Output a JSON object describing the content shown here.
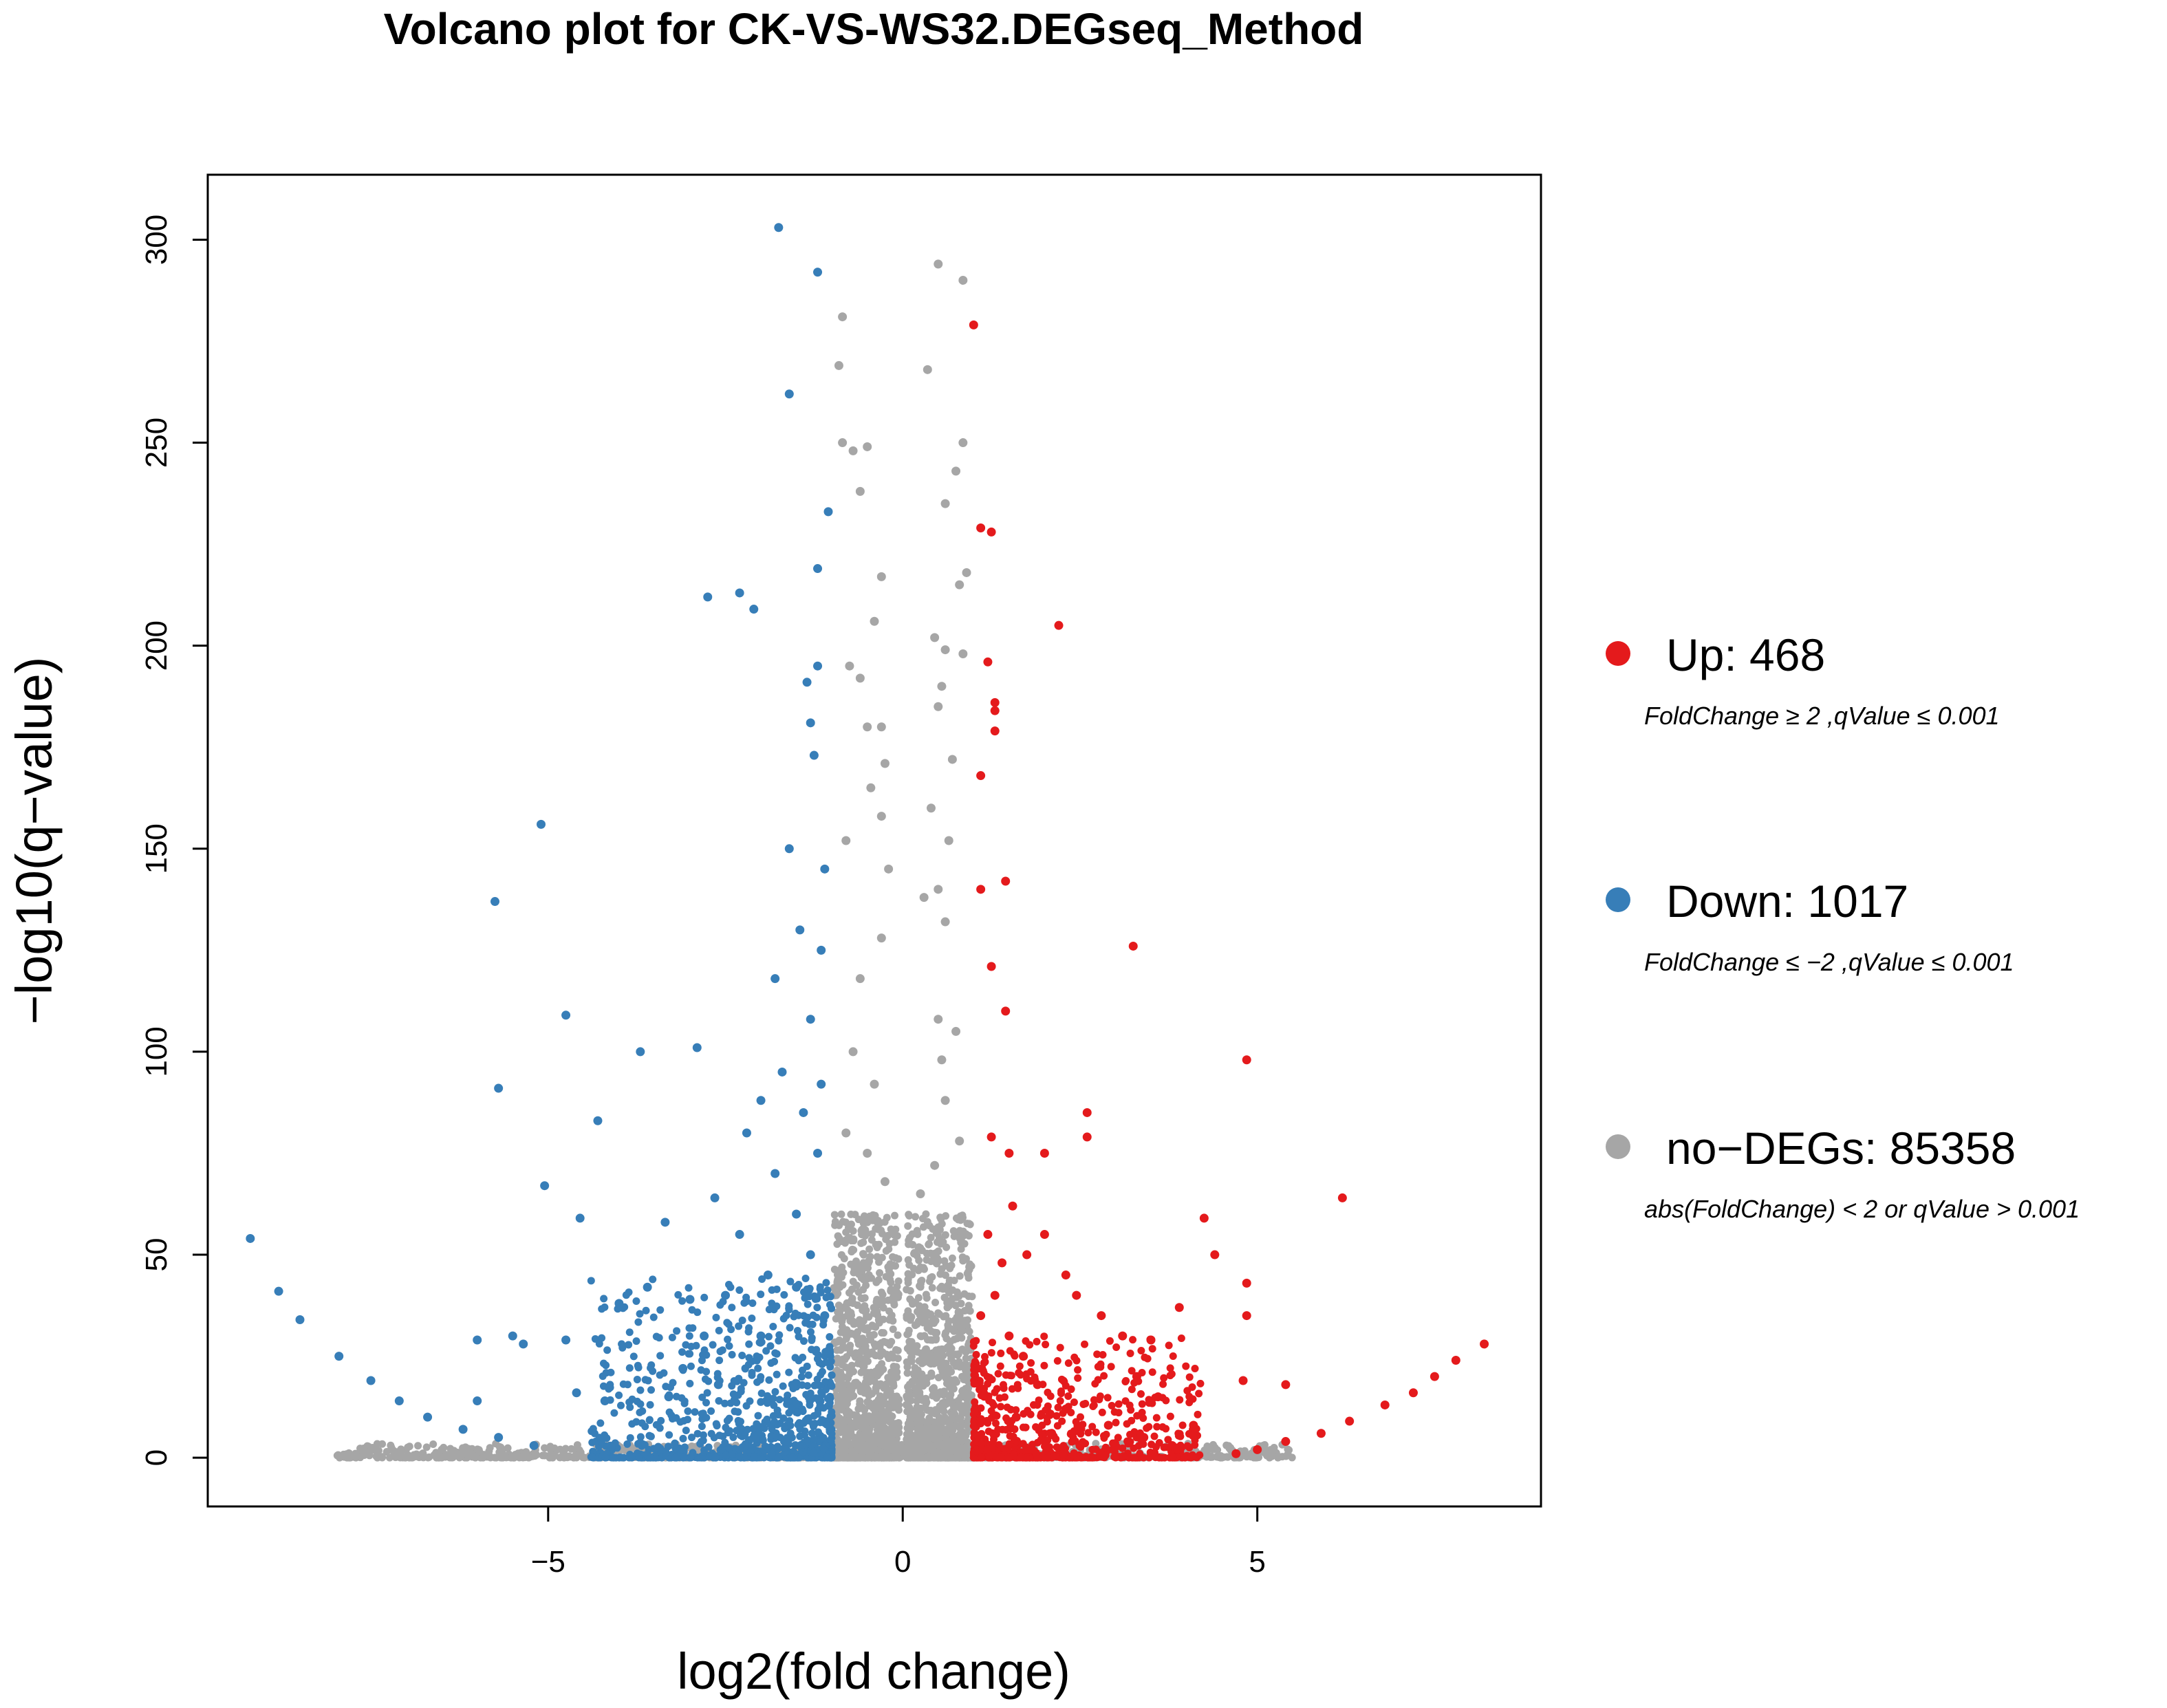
{
  "chart_data": {
    "type": "scatter",
    "title": "Volcano plot for CK-VS-WS32.DEGseq_Method",
    "xlabel": "log2(fold change)",
    "ylabel": "−log10(q−value)",
    "xlim": [
      -9.8,
      9.0
    ],
    "ylim": [
      -12,
      316
    ],
    "x_ticks": [
      -5,
      0,
      5
    ],
    "x_tick_labels": [
      "−5",
      "0",
      "5"
    ],
    "y_ticks": [
      0,
      50,
      100,
      150,
      200,
      250,
      300
    ],
    "y_tick_labels": [
      "0",
      "50",
      "100",
      "150",
      "200",
      "250",
      "300"
    ],
    "grid": false,
    "legend_position": "right",
    "series": [
      {
        "name": "Up",
        "label": "Up: 468",
        "count": 468,
        "criteria": "FoldChange ≥ 2 ,qValue ≤ 0.001",
        "color": "#e41a1c",
        "points": [
          [
            1.0,
            279
          ],
          [
            1.1,
            229
          ],
          [
            1.25,
            228
          ],
          [
            1.2,
            196
          ],
          [
            1.3,
            186
          ],
          [
            1.3,
            184
          ],
          [
            1.3,
            179
          ],
          [
            1.1,
            168
          ],
          [
            2.2,
            205
          ],
          [
            1.45,
            142
          ],
          [
            1.1,
            140
          ],
          [
            1.25,
            121
          ],
          [
            1.45,
            110
          ],
          [
            3.25,
            126
          ],
          [
            4.85,
            98
          ],
          [
            2.6,
            85
          ],
          [
            2.6,
            79
          ],
          [
            1.25,
            79
          ],
          [
            2.0,
            75
          ],
          [
            1.5,
            75
          ],
          [
            6.2,
            64
          ],
          [
            4.25,
            59
          ],
          [
            4.4,
            50
          ],
          [
            4.85,
            43
          ],
          [
            3.9,
            37
          ],
          [
            4.85,
            35
          ],
          [
            8.2,
            28
          ],
          [
            7.8,
            24
          ],
          [
            7.5,
            20
          ],
          [
            7.2,
            16
          ],
          [
            6.8,
            13
          ],
          [
            6.3,
            9
          ],
          [
            5.9,
            6
          ],
          [
            5.4,
            4
          ],
          [
            5.0,
            2
          ],
          [
            4.7,
            1
          ],
          [
            5.4,
            18
          ],
          [
            4.8,
            19
          ],
          [
            2.0,
            55
          ],
          [
            1.75,
            50
          ],
          [
            1.55,
            62
          ],
          [
            2.3,
            45
          ],
          [
            2.45,
            40
          ],
          [
            3.1,
            30
          ],
          [
            2.8,
            35
          ],
          [
            3.5,
            29
          ],
          [
            3.3,
            20
          ],
          [
            3.6,
            15
          ],
          [
            4.1,
            8
          ],
          [
            3.4,
            5
          ],
          [
            2.9,
            8
          ],
          [
            2.3,
            12
          ],
          [
            1.9,
            18
          ],
          [
            1.7,
            25
          ],
          [
            1.5,
            30
          ],
          [
            1.3,
            40
          ],
          [
            1.4,
            48
          ],
          [
            1.2,
            55
          ],
          [
            1.1,
            35
          ],
          [
            1.05,
            22
          ],
          [
            1.6,
            10
          ],
          [
            2.1,
            6
          ],
          [
            2.5,
            3
          ],
          [
            1.8,
            2
          ],
          [
            1.2,
            2
          ],
          [
            3.8,
            3
          ]
        ]
      },
      {
        "name": "Down",
        "label": "Down: 1017",
        "count": 1017,
        "criteria": "FoldChange ≤ −2 ,qValue ≤ 0.001",
        "color": "#377eb8",
        "points": [
          [
            -1.75,
            303
          ],
          [
            -1.2,
            292
          ],
          [
            -1.6,
            262
          ],
          [
            -1.05,
            233
          ],
          [
            -1.2,
            219
          ],
          [
            -2.75,
            212
          ],
          [
            -2.3,
            213
          ],
          [
            -2.1,
            209
          ],
          [
            -1.2,
            195
          ],
          [
            -1.35,
            191
          ],
          [
            -1.3,
            181
          ],
          [
            -1.25,
            173
          ],
          [
            -5.1,
            156
          ],
          [
            -5.75,
            137
          ],
          [
            -4.75,
            109
          ],
          [
            -3.7,
            100
          ],
          [
            -2.9,
            101
          ],
          [
            -5.7,
            91
          ],
          [
            -4.3,
            83
          ],
          [
            -2.2,
            80
          ],
          [
            -5.05,
            67
          ],
          [
            -2.65,
            64
          ],
          [
            -4.55,
            59
          ],
          [
            -3.35,
            58
          ],
          [
            -9.2,
            54
          ],
          [
            -8.8,
            41
          ],
          [
            -8.5,
            34
          ],
          [
            -7.95,
            25
          ],
          [
            -6.0,
            29
          ],
          [
            -5.5,
            30
          ],
          [
            -5.35,
            28
          ],
          [
            -4.75,
            29
          ],
          [
            -4.0,
            38
          ],
          [
            -3.6,
            42
          ],
          [
            -3.0,
            39
          ],
          [
            -7.5,
            19
          ],
          [
            -7.1,
            14
          ],
          [
            -6.7,
            10
          ],
          [
            -6.2,
            7
          ],
          [
            -5.7,
            5
          ],
          [
            -5.2,
            3
          ],
          [
            -4.6,
            16
          ],
          [
            -4.2,
            14
          ],
          [
            -6.0,
            14
          ],
          [
            -1.6,
            150
          ],
          [
            -1.1,
            145
          ],
          [
            -1.45,
            130
          ],
          [
            -1.8,
            118
          ],
          [
            -1.15,
            125
          ],
          [
            -1.3,
            108
          ],
          [
            -1.7,
            95
          ],
          [
            -1.15,
            92
          ],
          [
            -2.0,
            88
          ],
          [
            -1.4,
            85
          ],
          [
            -1.2,
            75
          ],
          [
            -1.8,
            70
          ],
          [
            -1.5,
            60
          ],
          [
            -2.3,
            55
          ],
          [
            -1.9,
            45
          ],
          [
            -2.5,
            40
          ],
          [
            -2.8,
            30
          ],
          [
            -3.1,
            22
          ],
          [
            -3.3,
            15
          ],
          [
            -2.6,
            18
          ],
          [
            -2.0,
            30
          ],
          [
            -1.3,
            50
          ],
          [
            -1.5,
            42
          ],
          [
            -1.1,
            35
          ]
        ]
      },
      {
        "name": "no-DEGs",
        "label": "no−DEGs: 85358",
        "count": 85358,
        "criteria": "abs(FoldChange) < 2  or qValue > 0.001",
        "color": "#a6a6a6",
        "points": [
          [
            0.5,
            294
          ],
          [
            0.85,
            290
          ],
          [
            -0.85,
            281
          ],
          [
            -0.9,
            269
          ],
          [
            0.35,
            268
          ],
          [
            -0.85,
            250
          ],
          [
            0.85,
            250
          ],
          [
            -0.5,
            249
          ],
          [
            -0.7,
            248
          ],
          [
            0.75,
            243
          ],
          [
            -0.6,
            238
          ],
          [
            0.6,
            235
          ],
          [
            0.9,
            218
          ],
          [
            0.8,
            215
          ],
          [
            -0.3,
            217
          ],
          [
            -0.4,
            206
          ],
          [
            0.45,
            202
          ],
          [
            0.6,
            199
          ],
          [
            0.85,
            198
          ],
          [
            -0.75,
            195
          ],
          [
            -0.6,
            192
          ],
          [
            0.55,
            190
          ],
          [
            0.5,
            185
          ],
          [
            -0.5,
            180
          ],
          [
            -0.3,
            180
          ],
          [
            -0.25,
            171
          ],
          [
            0.7,
            172
          ],
          [
            -0.45,
            165
          ],
          [
            0.4,
            160
          ],
          [
            -0.3,
            158
          ],
          [
            -0.8,
            152
          ],
          [
            -0.2,
            145
          ],
          [
            0.65,
            152
          ],
          [
            0.5,
            140
          ],
          [
            0.3,
            138
          ],
          [
            -0.3,
            128
          ],
          [
            0.6,
            132
          ],
          [
            -0.6,
            118
          ],
          [
            0.5,
            108
          ],
          [
            0.75,
            105
          ],
          [
            -0.7,
            100
          ],
          [
            0.55,
            98
          ],
          [
            -0.4,
            92
          ],
          [
            0.6,
            88
          ],
          [
            -0.8,
            80
          ],
          [
            0.8,
            78
          ],
          [
            -0.5,
            75
          ],
          [
            0.45,
            72
          ],
          [
            -0.25,
            68
          ],
          [
            0.25,
            65
          ]
        ]
      }
    ],
    "baseline": {
      "note": "dense cloud of no-DEG points along q-value 0–5 across full x range"
    }
  }
}
